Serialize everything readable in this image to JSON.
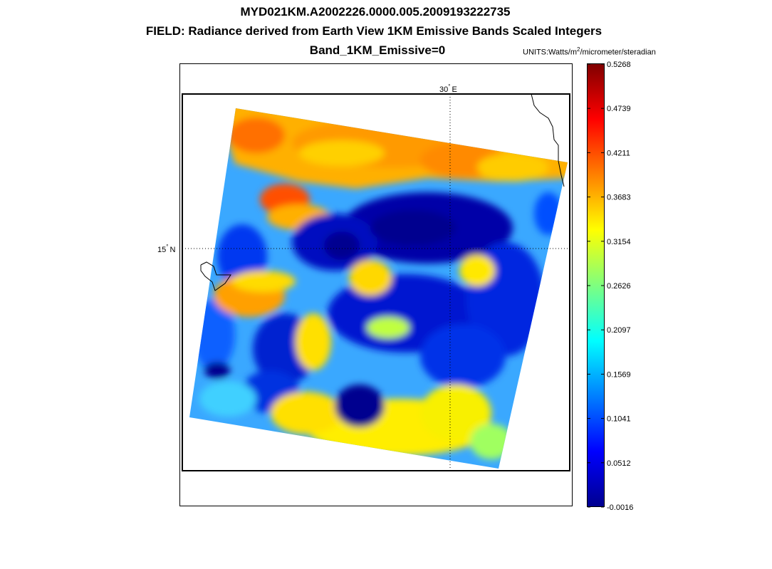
{
  "title": {
    "line1": "MYD021KM.A2002226.0000.005.2009193222735",
    "line2": "FIELD: Radiance derived from Earth View 1KM Emissive Bands Scaled Integers",
    "line3": "Band_1KM_Emissive=0"
  },
  "units": {
    "prefix": "UNITS:Watts/m",
    "exponent": "2",
    "suffix": "/micrometer/steradian"
  },
  "map": {
    "lon_label": "30",
    "lon_hemisphere": "E",
    "lat_label": "15",
    "lat_hemisphere": "N",
    "degree_symbol": "°"
  },
  "colorbar": {
    "colormap": "jet",
    "min": -0.0016,
    "max": 0.5268,
    "tick_labels": [
      "0.5268",
      "0.4739",
      "0.4211",
      "0.3683",
      "0.3154",
      "0.2626",
      "0.2097",
      "0.1569",
      "0.1041",
      "0.0512",
      "-0.0016"
    ]
  },
  "colors": {
    "dark_blue": "#00008f",
    "blue": "#0040ff",
    "cyan": "#00ffff",
    "yellow": "#ffff00",
    "orange": "#ff8000",
    "red": "#ff0000",
    "dark_red": "#800000"
  }
}
